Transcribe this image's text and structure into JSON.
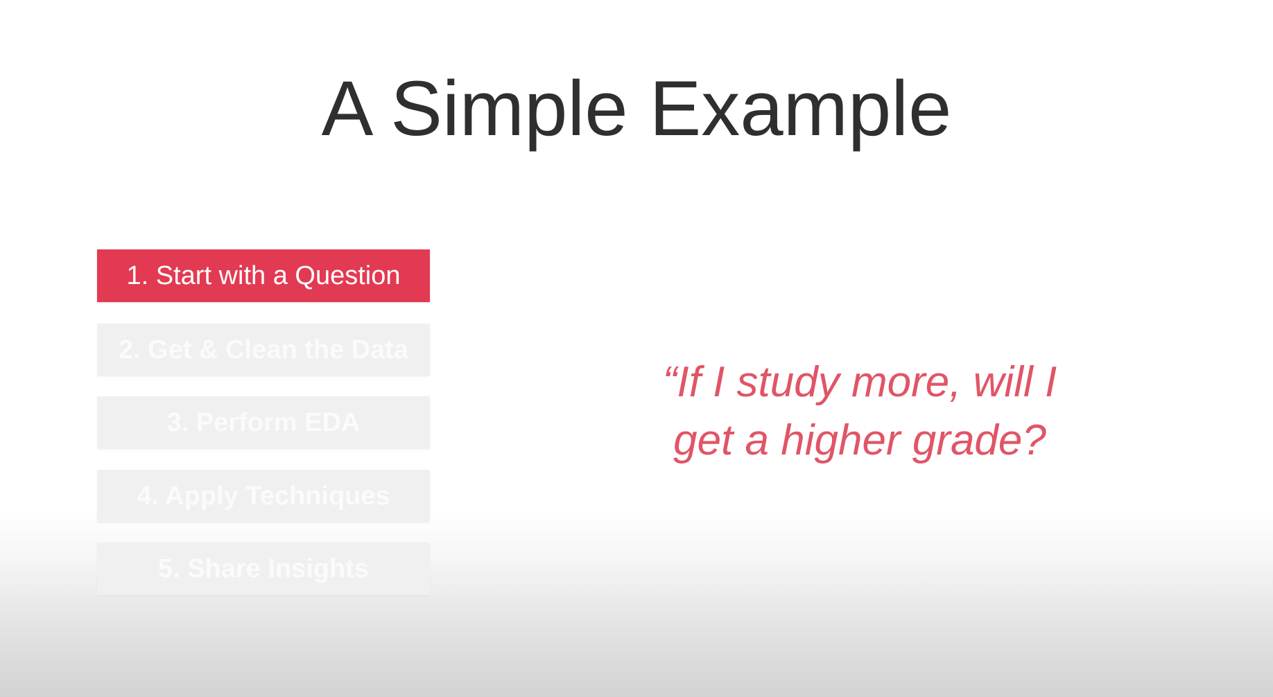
{
  "title": "A Simple Example",
  "steps": [
    {
      "label": "1. Start with a Question",
      "state": "active"
    },
    {
      "label": "2. Get & Clean the Data",
      "state": "inactive"
    },
    {
      "label": "3. Perform EDA",
      "state": "inactive"
    },
    {
      "label": "4. Apply Techniques",
      "state": "inactive"
    },
    {
      "label": "5. Share Insights",
      "state": "inactive"
    }
  ],
  "quote": {
    "line1": "“If I study more, will I",
    "line2": "get a higher grade?"
  },
  "colors": {
    "accent": "#e23a52",
    "quote": "#e05566",
    "title": "#2f2f2f",
    "inactive_box": "#f0f0f0"
  }
}
